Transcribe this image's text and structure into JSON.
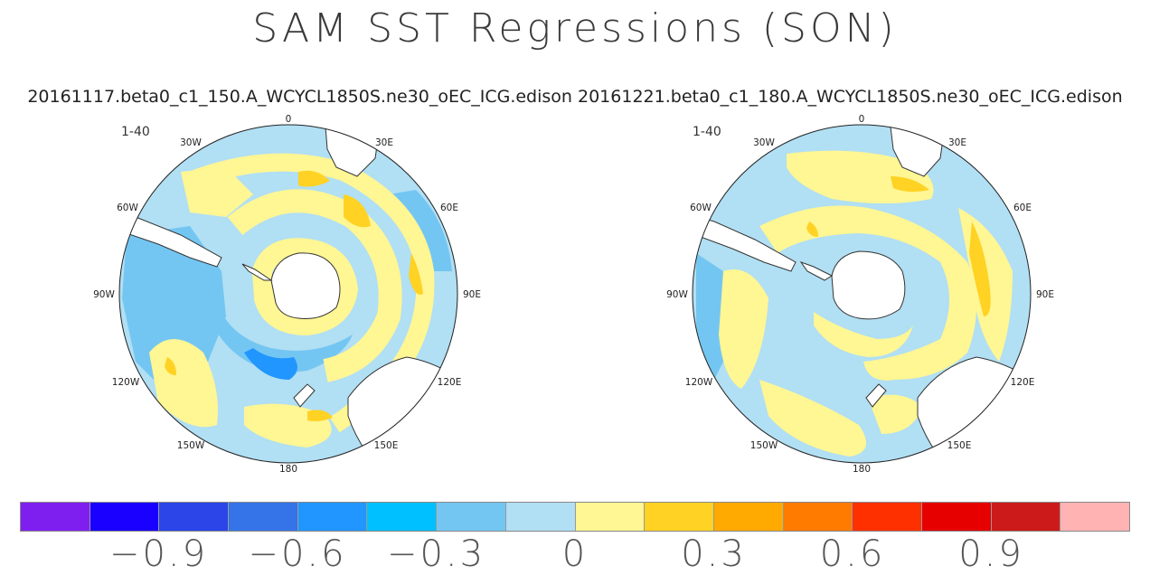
{
  "title": "SAM SST Regressions (SON)",
  "subtitle": "20161117.beta0_c1_150.A_WCYCL1850S.ne30_oEC_ICG.edison 20161221.beta0_c1_180.A_WCYCL1850S.ne30_oEC_ICG.edison",
  "maps": [
    {
      "range_label": "1-40",
      "lon_labels": [
        "0",
        "30E",
        "60E",
        "90E",
        "120E",
        "150E",
        "180",
        "150W",
        "120W",
        "90W",
        "60W",
        "30W"
      ]
    },
    {
      "range_label": "1-40",
      "lon_labels": [
        "0",
        "30E",
        "60E",
        "90E",
        "120E",
        "150E",
        "180",
        "150W",
        "120W",
        "90W",
        "60W",
        "30W"
      ]
    }
  ],
  "colorbar": {
    "colors": [
      "#7f1fef",
      "#1a00ff",
      "#2b45e8",
      "#3473e8",
      "#2196ff",
      "#00c0ff",
      "#74c6f2",
      "#b1dff3",
      "#fff694",
      "#ffd223",
      "#ffaa00",
      "#ff7b00",
      "#ff3000",
      "#e60000",
      "#cc1a1a",
      "#ffb3b3"
    ],
    "tick_labels": [
      "−0.9",
      "−0.6",
      "−0.3",
      "0",
      "0.3",
      "0.6",
      "0.9"
    ]
  },
  "legend_values": [
    -0.9,
    -0.6,
    -0.3,
    0,
    0.3,
    0.6,
    0.9
  ],
  "palette": {
    "light_blue": "#b1dff3",
    "mid_blue": "#74c6f2",
    "blue": "#2196ff",
    "yellow": "#fff694",
    "orange": "#ffd223",
    "land": "#ffffff",
    "coast": "#333333"
  }
}
